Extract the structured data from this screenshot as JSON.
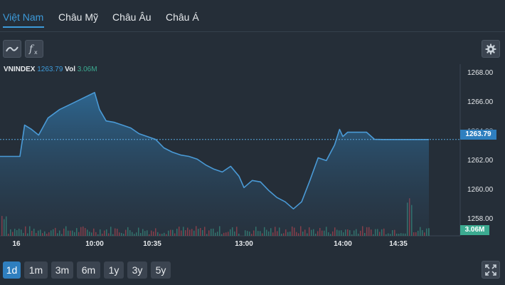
{
  "tabs": [
    {
      "label": "Việt Nam",
      "active": true
    },
    {
      "label": "Châu Mỹ"
    },
    {
      "label": "Châu Âu"
    },
    {
      "label": "Châu Á"
    }
  ],
  "toolbar": {
    "chart_type_icon": "line-chart-icon",
    "indicator_icon": "function-fx-icon",
    "settings_icon": "gear-icon",
    "fullscreen_icon": "expand-arrows-icon"
  },
  "legend": {
    "symbol": "VNINDEX",
    "value": "1263.79",
    "vol_label": "Vol",
    "vol_value": "3.06M"
  },
  "price_tag": "1263.79",
  "vol_tag": "3.06M",
  "ranges": [
    {
      "label": "1d",
      "active": true
    },
    {
      "label": "1m"
    },
    {
      "label": "3m"
    },
    {
      "label": "6m"
    },
    {
      "label": "1y"
    },
    {
      "label": "3y"
    },
    {
      "label": "5y"
    }
  ],
  "colors": {
    "accent": "#3d9ad9",
    "up_volume": "#3cab91",
    "down_volume": "#e0454d",
    "background": "#252e38"
  },
  "chart_data": {
    "type": "area",
    "ylim": [
      1257,
      1269.1
    ],
    "y_ticks": [
      "1268.00",
      "1266.00",
      "1264.00",
      "1262.00",
      "1260.00",
      "1258.00"
    ],
    "x_ticks": [
      "16",
      "10:00",
      "10:35",
      "13:00",
      "14:00",
      "14:35"
    ],
    "series": [
      {
        "x": [
          "09:15",
          "09:28",
          "09:30",
          "09:33",
          "09:36",
          "09:40",
          "09:45",
          "09:50",
          "09:55",
          "10:00",
          "10:03",
          "10:07",
          "10:12",
          "10:17",
          "10:22",
          "10:27",
          "10:32",
          "10:37",
          "10:42",
          "10:47",
          "10:52",
          "10:57",
          "11:02",
          "11:07",
          "11:12",
          "11:17",
          "11:22",
          "11:27",
          "13:00",
          "13:05",
          "13:10",
          "13:15",
          "13:20",
          "13:25",
          "13:30",
          "13:35",
          "13:40",
          "13:45",
          "13:50",
          "13:55",
          "13:58",
          "14:00",
          "14:03",
          "14:06",
          "14:10",
          "14:15",
          "14:20",
          "14:25",
          "14:30",
          "14:35",
          "14:40",
          "14:45"
        ],
        "values": [
          1262.6,
          1262.6,
          1264.8,
          1264.5,
          1264.1,
          1265.3,
          1265.9,
          1266.3,
          1266.7,
          1267.1,
          1265.9,
          1265.1,
          1265.0,
          1264.8,
          1264.6,
          1264.2,
          1264.0,
          1263.8,
          1263.2,
          1262.9,
          1262.7,
          1262.6,
          1262.4,
          1262.0,
          1261.7,
          1261.5,
          1261.9,
          1261.2,
          1260.4,
          1260.9,
          1260.8,
          1260.2,
          1259.7,
          1259.4,
          1258.9,
          1259.4,
          1260.9,
          1262.5,
          1262.3,
          1263.4,
          1264.5,
          1264.0,
          1264.3,
          1264.3,
          1264.3,
          1264.3,
          1263.8,
          1263.79,
          1263.79,
          1263.79,
          1263.79,
          1263.79
        ]
      }
    ],
    "last_value": 1263.79,
    "volume_series": {
      "last_volume": "3.06M"
    },
    "grid": false,
    "legend_position": "top-left"
  }
}
